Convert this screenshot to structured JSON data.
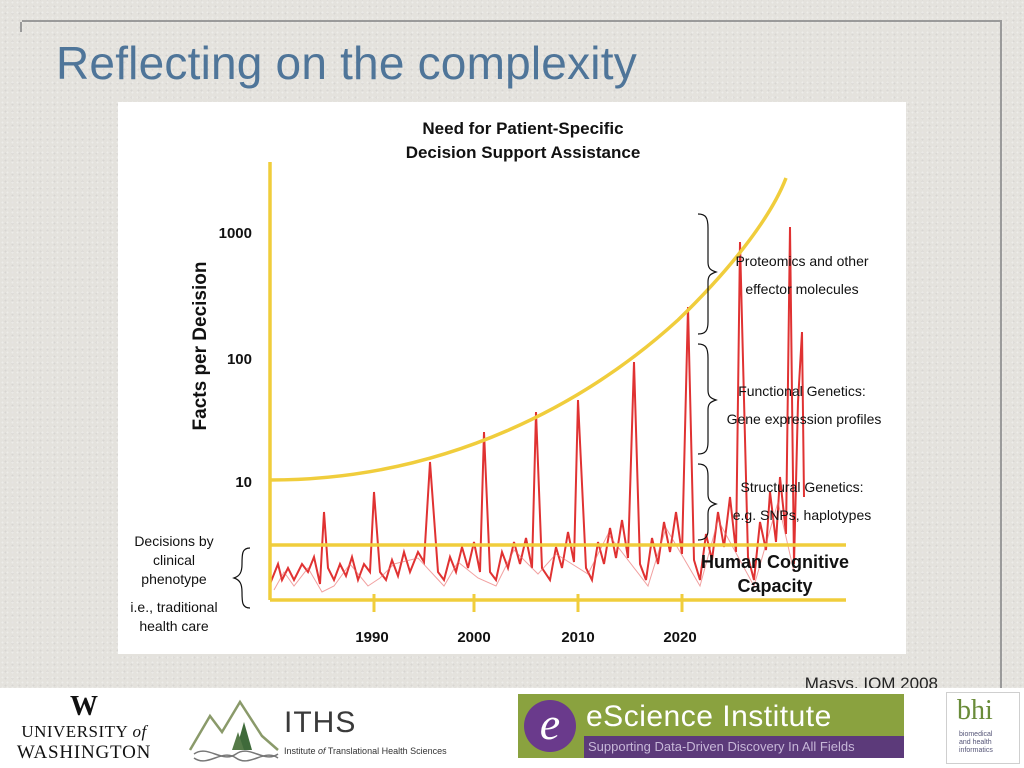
{
  "slide": {
    "title": "Reflecting on the complexity",
    "citation": "Masys, IOM 2008"
  },
  "figure": {
    "title_line1": "Need for Patient-Specific",
    "title_line2": "Decision Support Assistance",
    "ylabel": "Facts per Decision",
    "y_ticks": [
      "1000",
      "100",
      "10"
    ],
    "x_ticks": [
      "1990",
      "2000",
      "2010",
      "2020"
    ],
    "capacity_label_line1": "Human Cognitive",
    "capacity_label_line2": "Capacity",
    "left_annotation": [
      "Decisions by",
      "clinical",
      "phenotype",
      "i.e., traditional",
      "health care"
    ],
    "right_annotations": [
      {
        "line1": "Proteomics and other",
        "line2": "effector molecules"
      },
      {
        "line1": "Functional Genetics:",
        "line2": "Gene expression profiles"
      },
      {
        "line1": "Structural Genetics:",
        "line2": "e.g. SNPs, haplotypes"
      }
    ],
    "colors": {
      "curve": "#f0cd3c",
      "spikes": "#e03232",
      "text": "#111111"
    }
  },
  "logos": {
    "uw": {
      "mark": "W",
      "line1_a": "UNIVERSITY ",
      "line1_b": "of",
      "line2": "WASHINGTON"
    },
    "iths": {
      "name": "ITHS",
      "sub_a": "Institute ",
      "sub_b": "of",
      "sub_c": " Translational Health Sciences"
    },
    "escience": {
      "mark": "e",
      "name": "eScience Institute",
      "tagline": "Supporting Data-Driven Discovery In All Fields"
    },
    "bhi": {
      "mark": "bhi",
      "line1": "biomedical",
      "line2": "and health",
      "line3": "informatics"
    }
  }
}
